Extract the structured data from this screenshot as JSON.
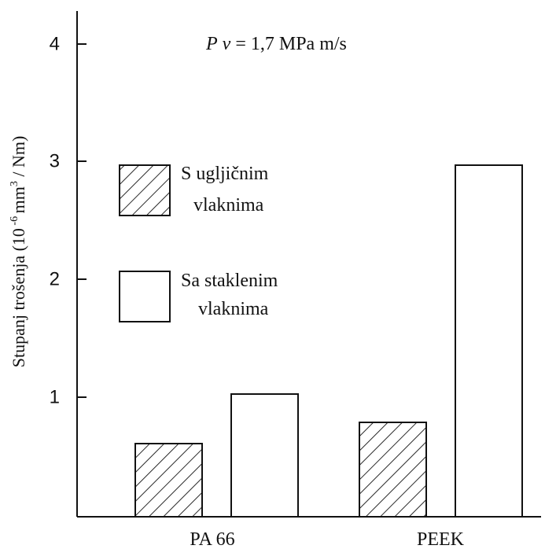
{
  "chart_data": {
    "type": "bar",
    "annotation": {
      "p": "P",
      "v": "v",
      "rest": " = 1,7 MPa m/s"
    },
    "ylabel": {
      "main": "Stupanj trošenja (10",
      "exp1": " -6 ",
      "mid": "mm",
      "exp2": "3",
      "end": " / Nm)"
    },
    "ylim": [
      0,
      4.35
    ],
    "yticks": [
      "1",
      "2",
      "3",
      "4"
    ],
    "categories": [
      "PA 66",
      "PEEK"
    ],
    "series": [
      {
        "name": "S ugljičnim vlaknima",
        "legend_lines": [
          "S ugljičnim",
          "vlaknima"
        ],
        "pattern": "hatch",
        "values": [
          0.62,
          0.8
        ]
      },
      {
        "name": "Sa staklenim vlaknima",
        "legend_lines": [
          "Sa staklenim",
          "vlaknima"
        ],
        "pattern": "plain",
        "values": [
          1.04,
          2.98
        ]
      }
    ],
    "legend_position": "upper-left",
    "grid": false
  }
}
